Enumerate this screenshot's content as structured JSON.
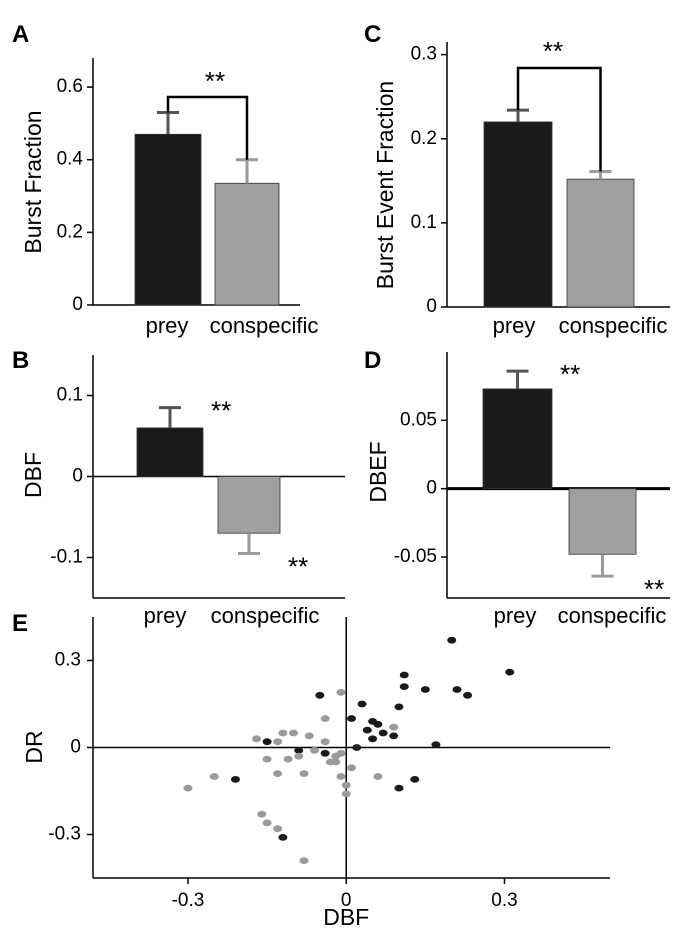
{
  "colors": {
    "prey": "#1a1a1a",
    "conspecific": "#a0a0a0",
    "prey_point": "#1a1a1a",
    "conspecific_point": "#9a9a9a",
    "error_prey": "#555555",
    "error_conspecific": "#9a9a9a"
  },
  "chart_data": [
    {
      "panel": "A",
      "type": "bar",
      "categories": [
        "prey",
        "conspecific"
      ],
      "values": [
        0.47,
        0.335
      ],
      "errors": [
        0.06,
        0.065
      ],
      "ylabel": "Burst Fraction",
      "ylim": [
        0,
        0.68
      ],
      "yticks": [
        0,
        0.2,
        0.4,
        0.6
      ],
      "ytick_labels": [
        "0",
        "0.2",
        "0.4",
        "0.6"
      ],
      "significance": "**",
      "significance_style": "bracket"
    },
    {
      "panel": "B",
      "type": "bar",
      "categories": [
        "prey",
        "conspecific"
      ],
      "values": [
        0.06,
        -0.07
      ],
      "errors": [
        0.025,
        0.025
      ],
      "ylabel": "DBF",
      "ylim": [
        -0.15,
        0.15
      ],
      "yticks": [
        -0.1,
        0,
        0.1
      ],
      "ytick_labels": [
        "-0.1",
        "0",
        "0.1"
      ],
      "significance": [
        "**",
        "**"
      ],
      "significance_style": "per-bar"
    },
    {
      "panel": "C",
      "type": "bar",
      "categories": [
        "prey",
        "conspecific"
      ],
      "values": [
        0.22,
        0.152
      ],
      "errors": [
        0.014,
        0.009
      ],
      "ylabel": "Burst Event Fraction",
      "ylim": [
        0,
        0.315
      ],
      "yticks": [
        0,
        0.1,
        0.2,
        0.3
      ],
      "ytick_labels": [
        "0",
        "0.1",
        "0.2",
        "0.3"
      ],
      "significance": "**",
      "significance_style": "bracket"
    },
    {
      "panel": "D",
      "type": "bar",
      "categories": [
        "prey",
        "conspecific"
      ],
      "values": [
        0.073,
        -0.048
      ],
      "errors": [
        0.013,
        0.016
      ],
      "ylabel": "DBEF",
      "ylim": [
        -0.08,
        0.1
      ],
      "yticks": [
        -0.05,
        0,
        0.05
      ],
      "ytick_labels": [
        "-0.05",
        "0",
        "0.05"
      ],
      "significance": [
        "**",
        "**"
      ],
      "significance_style": "per-bar"
    },
    {
      "panel": "E",
      "type": "scatter",
      "xlabel": "DBF",
      "ylabel": "DR",
      "xlim": [
        -0.48,
        0.5
      ],
      "ylim": [
        -0.45,
        0.45
      ],
      "xticks": [
        -0.3,
        0,
        0.3
      ],
      "xtick_labels": [
        "-0.3",
        "0",
        "0.3"
      ],
      "yticks": [
        -0.3,
        0,
        0.3
      ],
      "ytick_labels": [
        "-0.3",
        "0",
        "0.3"
      ],
      "series": [
        {
          "points": [
            [
              0.2,
              0.37
            ],
            [
              0.31,
              0.26
            ],
            [
              0.11,
              0.25
            ],
            [
              0.11,
              0.21
            ],
            [
              0.15,
              0.2
            ],
            [
              0.21,
              0.2
            ],
            [
              0.23,
              0.18
            ],
            [
              -0.05,
              0.18
            ],
            [
              0.03,
              0.15
            ],
            [
              0.1,
              0.14
            ],
            [
              0.01,
              0.1
            ],
            [
              0.05,
              0.09
            ],
            [
              0.06,
              0.08
            ],
            [
              0.04,
              0.06
            ],
            [
              0.07,
              0.05
            ],
            [
              0.09,
              0.04
            ],
            [
              0.05,
              0.03
            ],
            [
              -0.15,
              0.02
            ],
            [
              0.17,
              0.01
            ],
            [
              0.02,
              0.0
            ],
            [
              -0.09,
              -0.01
            ],
            [
              -0.04,
              -0.02
            ],
            [
              -0.21,
              -0.11
            ],
            [
              0.1,
              -0.14
            ],
            [
              0.13,
              -0.11
            ],
            [
              -0.12,
              -0.31
            ]
          ]
        },
        {
          "points": [
            [
              -0.01,
              0.19
            ],
            [
              -0.04,
              0.1
            ],
            [
              0.09,
              0.07
            ],
            [
              -0.1,
              0.05
            ],
            [
              -0.12,
              0.05
            ],
            [
              -0.07,
              0.04
            ],
            [
              -0.17,
              0.03
            ],
            [
              -0.13,
              0.02
            ],
            [
              -0.04,
              0.02
            ],
            [
              -0.06,
              -0.01
            ],
            [
              -0.09,
              -0.03
            ],
            [
              -0.15,
              -0.04
            ],
            [
              -0.01,
              -0.02
            ],
            [
              -0.02,
              -0.03
            ],
            [
              -0.11,
              -0.04
            ],
            [
              -0.03,
              -0.05
            ],
            [
              -0.02,
              -0.05
            ],
            [
              0.01,
              -0.07
            ],
            [
              -0.13,
              -0.09
            ],
            [
              -0.01,
              -0.1
            ],
            [
              -0.25,
              -0.1
            ],
            [
              -0.3,
              -0.14
            ],
            [
              0.0,
              -0.13
            ],
            [
              -0.08,
              -0.09
            ],
            [
              0.06,
              -0.1
            ],
            [
              0.0,
              -0.16
            ],
            [
              -0.16,
              -0.23
            ],
            [
              -0.15,
              -0.26
            ],
            [
              -0.13,
              -0.28
            ],
            [
              -0.08,
              -0.39
            ]
          ]
        }
      ]
    }
  ]
}
